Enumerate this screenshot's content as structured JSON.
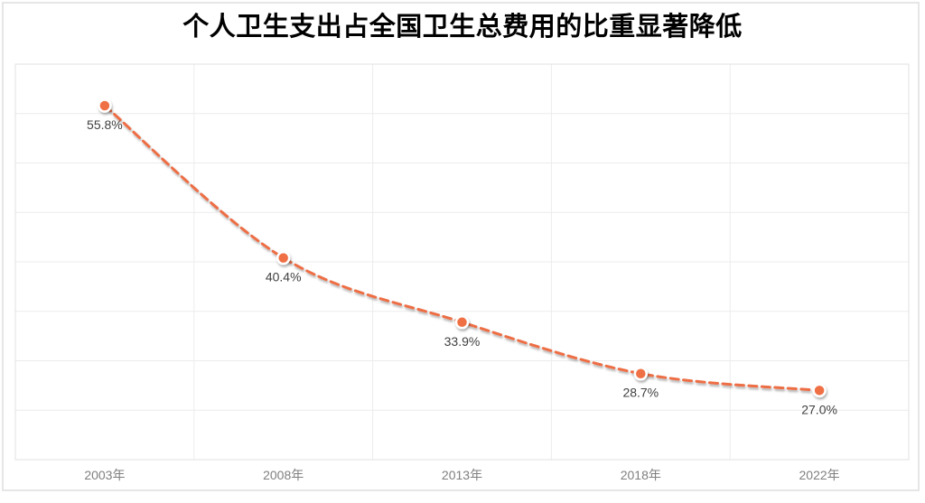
{
  "title": "个人卫生支出占全国卫生总费用的比重显著降低",
  "colors": {
    "background": "#ffffff",
    "outer_border": "#e6e6e6",
    "gridline": "#ececec",
    "plot_border": "#e0e0e0",
    "line": "#ed6e45",
    "marker_fill": "#f06f44",
    "marker_ring": "#ffffff",
    "data_label": "#404040",
    "axis_label": "#7f7f7f",
    "title_color": "#000000"
  },
  "chart_data": {
    "type": "line",
    "line_style": "dashed",
    "smoothed": true,
    "title": "个人卫生支出占全国卫生总费用的比重显著降低",
    "categories": [
      "2003年",
      "2008年",
      "2013年",
      "2018年",
      "2022年"
    ],
    "values": [
      55.8,
      40.4,
      33.9,
      28.7,
      27.0
    ],
    "data_labels": [
      "55.8%",
      "40.4%",
      "33.9%",
      "28.7%",
      "27.0%"
    ],
    "xlabel": "",
    "ylabel": "",
    "ylim": [
      20,
      60
    ],
    "y_gridline_step": 5,
    "grid": true,
    "legend": "none",
    "y_axis_labels_visible": false
  }
}
